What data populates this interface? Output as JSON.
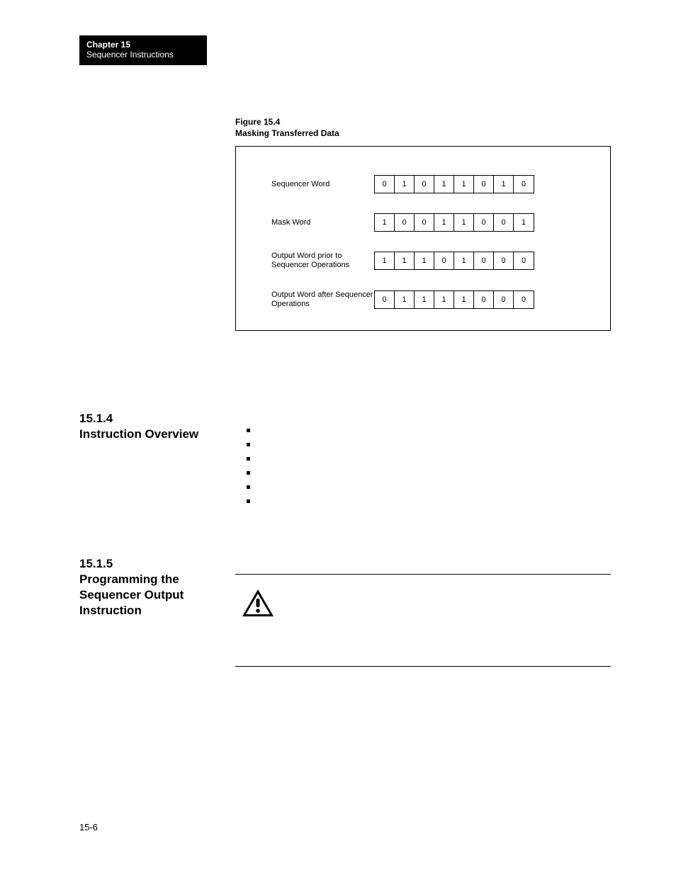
{
  "header": {
    "chapter": "Chapter 15",
    "subtitle": "Sequencer Instructions"
  },
  "figure": {
    "number": "Figure 15.4",
    "title": "Masking Transferred Data",
    "rows": [
      {
        "label": "Sequencer Word",
        "bits": [
          "0",
          "1",
          "0",
          "1",
          "1",
          "0",
          "1",
          "0"
        ]
      },
      {
        "label": "Mask Word",
        "bits": [
          "1",
          "0",
          "0",
          "1",
          "1",
          "0",
          "0",
          "1"
        ]
      },
      {
        "label": "Output Word prior to Sequencer Operations",
        "bits": [
          "1",
          "1",
          "1",
          "0",
          "1",
          "0",
          "0",
          "0"
        ]
      },
      {
        "label": "Output Word after Sequencer Operations",
        "bits": [
          "0",
          "1",
          "1",
          "1",
          "1",
          "0",
          "0",
          "0"
        ]
      }
    ]
  },
  "sections": {
    "s1": {
      "num": "15.1.4",
      "title": "Instruction Overview"
    },
    "s2": {
      "num": "15.1.5",
      "title": "Programming the Sequencer Output Instruction"
    }
  },
  "bullets_count": 6,
  "page_number": "15-6",
  "icon_colors": {
    "fill": "#000000"
  }
}
